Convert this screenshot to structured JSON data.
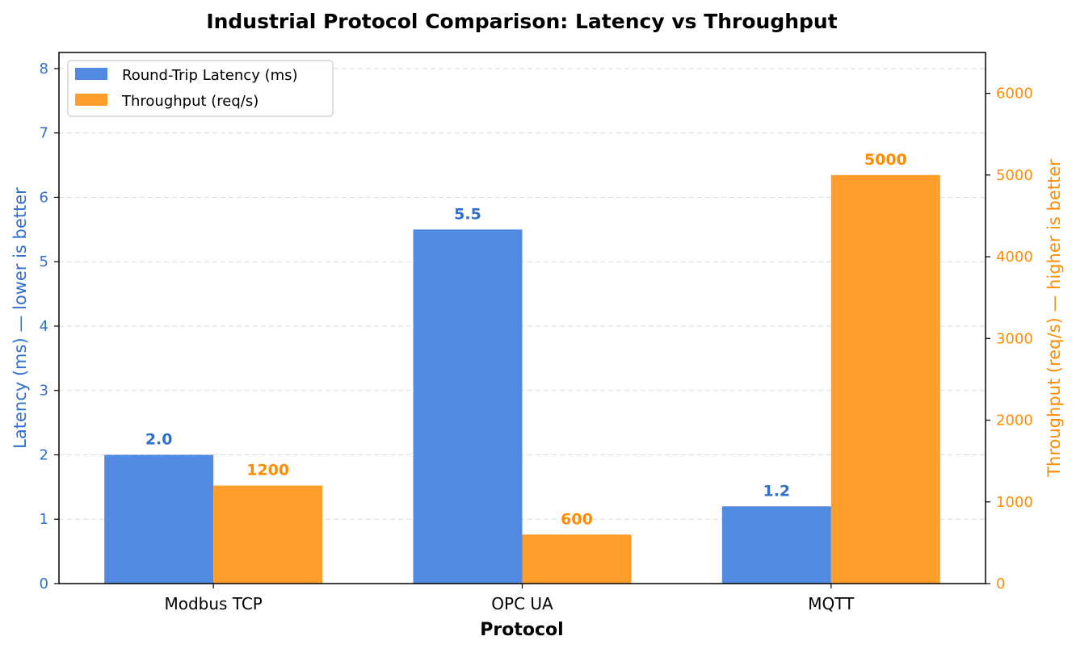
{
  "chart_data": {
    "type": "bar",
    "title": "Industrial Protocol Comparison: Latency vs Throughput",
    "xlabel": "Protocol",
    "categories": [
      "Modbus TCP",
      "OPC UA",
      "MQTT"
    ],
    "series": [
      {
        "name": "Round-Trip Latency (ms)",
        "axis": "left",
        "color": "#528ae2",
        "label_color": "#2f6fcf",
        "values": [
          2.0,
          5.5,
          1.2
        ],
        "labels": [
          "2.0",
          "5.5",
          "1.2"
        ]
      },
      {
        "name": "Throughput (req/s)",
        "axis": "right",
        "color": "#ff9d2b",
        "label_color": "#ff8c00",
        "values": [
          1200,
          600,
          5000
        ],
        "labels": [
          "1200",
          "600",
          "5000"
        ]
      }
    ],
    "y_left": {
      "label": "Latency (ms)  — lower is better",
      "ylim": [
        0,
        8.25
      ],
      "ticks": [
        0,
        1,
        2,
        3,
        4,
        5,
        6,
        7,
        8
      ],
      "color": "#2f6fcf"
    },
    "y_right": {
      "label": "Throughput (req/s)  — higher is better",
      "ylim": [
        0,
        6500
      ],
      "ticks": [
        0,
        1000,
        2000,
        3000,
        4000,
        5000,
        6000
      ],
      "color": "#ff8c00"
    },
    "grid": true,
    "legend_position": "top-left"
  }
}
